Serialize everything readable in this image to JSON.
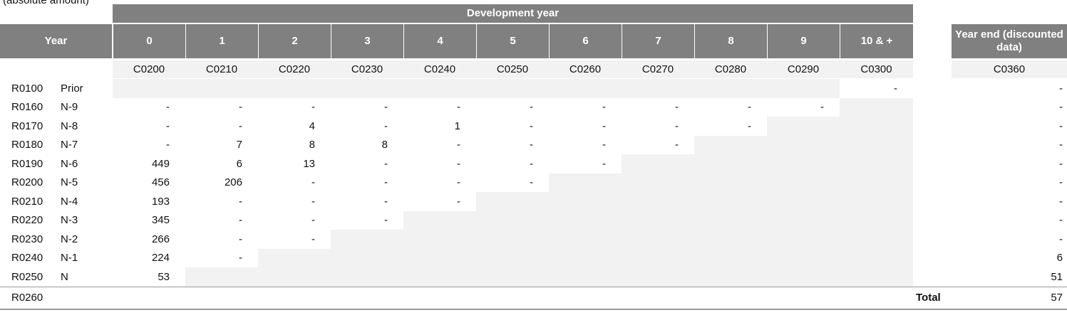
{
  "caption": "(absolute amount)",
  "header": {
    "group": "Development year",
    "year": "Year",
    "columns": [
      "0",
      "1",
      "2",
      "3",
      "4",
      "5",
      "6",
      "7",
      "8",
      "9",
      "10 & +"
    ],
    "year_end": "Year end (discounted data)"
  },
  "codes": [
    "C0200",
    "C0210",
    "C0220",
    "C0230",
    "C0240",
    "C0250",
    "C0260",
    "C0270",
    "C0280",
    "C0290",
    "C0300"
  ],
  "year_end_code": "C0360",
  "rows": [
    {
      "code": "R0100",
      "name": "Prior",
      "values": [
        null,
        null,
        null,
        null,
        null,
        null,
        null,
        null,
        null,
        null,
        "-"
      ],
      "year_end": "-"
    },
    {
      "code": "R0160",
      "name": "N-9",
      "values": [
        "-",
        "-",
        "-",
        "-",
        "-",
        "-",
        "-",
        "-",
        "-",
        "-",
        null
      ],
      "year_end": "-"
    },
    {
      "code": "R0170",
      "name": "N-8",
      "values": [
        "-",
        "-",
        4,
        "-",
        1,
        "-",
        "-",
        "-",
        "-",
        null,
        null
      ],
      "year_end": "-"
    },
    {
      "code": "R0180",
      "name": "N-7",
      "values": [
        "-",
        7,
        8,
        8,
        "-",
        "-",
        "-",
        "-",
        null,
        null,
        null
      ],
      "year_end": "-"
    },
    {
      "code": "R0190",
      "name": "N-6",
      "values": [
        449,
        6,
        13,
        "-",
        "-",
        "-",
        "-",
        null,
        null,
        null,
        null
      ],
      "year_end": "-"
    },
    {
      "code": "R0200",
      "name": "N-5",
      "values": [
        456,
        206,
        "-",
        "-",
        "-",
        "-",
        null,
        null,
        null,
        null,
        null
      ],
      "year_end": "-"
    },
    {
      "code": "R0210",
      "name": "N-4",
      "values": [
        193,
        "-",
        "-",
        "-",
        "-",
        null,
        null,
        null,
        null,
        null,
        null
      ],
      "year_end": "-"
    },
    {
      "code": "R0220",
      "name": "N-3",
      "values": [
        345,
        "-",
        "-",
        "-",
        null,
        null,
        null,
        null,
        null,
        null,
        null
      ],
      "year_end": "-"
    },
    {
      "code": "R0230",
      "name": "N-2",
      "values": [
        266,
        "-",
        "-",
        null,
        null,
        null,
        null,
        null,
        null,
        null,
        null
      ],
      "year_end": "-"
    },
    {
      "code": "R0240",
      "name": "N-1",
      "values": [
        224,
        "-",
        null,
        null,
        null,
        null,
        null,
        null,
        null,
        null,
        null
      ],
      "year_end": 6
    },
    {
      "code": "R0250",
      "name": "N",
      "values": [
        53,
        null,
        null,
        null,
        null,
        null,
        null,
        null,
        null,
        null,
        null
      ],
      "year_end": 51
    }
  ],
  "total": {
    "code": "R0260",
    "label": "Total",
    "value": 57
  }
}
